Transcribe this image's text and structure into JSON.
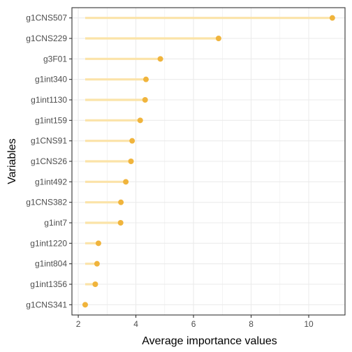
{
  "chart_data": {
    "type": "lollipop",
    "xlabel": "Average importance values",
    "ylabel": "Variables",
    "xlim": [
      1.78,
      11.26
    ],
    "x_ticks": [
      2,
      4,
      6,
      8,
      10
    ],
    "grid": true,
    "colors": {
      "stem": "#FBE3A8",
      "point": "#F0B43C",
      "grid": "#EBEBEB",
      "panel_border": "#333333"
    },
    "baseline": 2.24,
    "categories": [
      "g1CNS507",
      "g1CNS229",
      "g3F01",
      "g1int340",
      "g1int1130",
      "g1int159",
      "g1CNS91",
      "g1CNS26",
      "g1int492",
      "g1CNS382",
      "g1int7",
      "g1int1220",
      "g1int804",
      "g1int1356",
      "g1CNS341"
    ],
    "values": [
      10.82,
      6.87,
      4.85,
      4.35,
      4.32,
      4.15,
      3.87,
      3.83,
      3.65,
      3.48,
      3.47,
      2.7,
      2.65,
      2.59,
      2.24
    ]
  }
}
